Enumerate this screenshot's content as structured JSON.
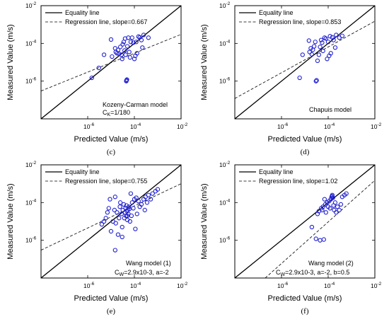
{
  "chart_data": [
    {
      "panel": "(c)",
      "type": "scatter",
      "xlabel": "Predicted Value (m/s)",
      "ylabel": "Measured Value (m/s)",
      "xscale": "log",
      "yscale": "log",
      "xlim": [
        1e-08,
        0.01
      ],
      "ylim": [
        1e-08,
        0.01
      ],
      "tick_labels": [
        "10",
        "-6",
        "10",
        "-4",
        "10",
        "-2"
      ],
      "legend": {
        "position": "top-left",
        "entries": [
          "Equality line",
          "Regression line, slope=0.667"
        ]
      },
      "annotation": {
        "line1": "Kozeny-Carman model",
        "line2_main": "C",
        "line2_sub": "K",
        "line2_rest": "=1/180"
      },
      "regression": {
        "slope": 0.667,
        "start": [
          1e-08,
          3e-07
        ],
        "end": [
          0.01,
          0.0003
        ]
      },
      "points": [
        [
          1.5e-06,
          1.5e-06
        ],
        [
          3e-06,
          5e-06
        ],
        [
          5e-06,
          2.5e-05
        ],
        [
          1e-05,
          0.00016
        ],
        [
          1.1e-05,
          2e-05
        ],
        [
          1.5e-05,
          5.5e-05
        ],
        [
          1.6e-05,
          3.5e-05
        ],
        [
          1.8e-05,
          3e-05
        ],
        [
          2e-05,
          4.5e-05
        ],
        [
          2.2e-05,
          2.8e-05
        ],
        [
          2.5e-05,
          6.5e-05
        ],
        [
          2.8e-05,
          2.5e-05
        ],
        [
          3e-05,
          1.5e-05
        ],
        [
          3.2e-05,
          9e-05
        ],
        [
          3.5e-05,
          0.00012
        ],
        [
          3.8e-05,
          4.2e-05
        ],
        [
          4e-05,
          0.00018
        ],
        [
          4.2e-05,
          2.5e-05
        ],
        [
          4.5e-05,
          1e-06
        ],
        [
          4.6e-05,
          1.1e-06
        ],
        [
          4.8e-05,
          1.2e-06
        ],
        [
          5e-05,
          7e-05
        ],
        [
          5.5e-05,
          0.0002
        ],
        [
          6e-05,
          3.5e-05
        ],
        [
          6.5e-05,
          1.8e-05
        ],
        [
          7e-05,
          0.00012
        ],
        [
          8e-05,
          0.0002
        ],
        [
          9e-05,
          0.00011
        ],
        [
          0.0001,
          1.5e-05
        ],
        [
          0.00011,
          2.2e-05
        ],
        [
          0.00012,
          0.00012
        ],
        [
          0.00013,
          3e-05
        ],
        [
          0.00015,
          0.00023
        ],
        [
          0.00017,
          0.00021
        ],
        [
          0.0002,
          0.00015
        ],
        [
          0.00022,
          6e-05
        ],
        [
          0.00025,
          0.00028
        ],
        [
          0.0004,
          0.0002
        ]
      ]
    },
    {
      "panel": "(d)",
      "type": "scatter",
      "xlabel": "Predicted Value (m/s)",
      "ylabel": "Measured Value (m/s)",
      "xscale": "log",
      "yscale": "log",
      "xlim": [
        1e-08,
        0.01
      ],
      "ylim": [
        1e-08,
        0.01
      ],
      "tick_labels": [
        "10",
        "-6",
        "10",
        "-4",
        "10",
        "-2"
      ],
      "legend": {
        "position": "top-left",
        "entries": [
          "Equality line",
          "Regression line, slope=0.853"
        ]
      },
      "annotation": {
        "line1": "Chapuis model",
        "line2_main": "",
        "line2_sub": "",
        "line2_rest": ""
      },
      "regression": {
        "slope": 0.853,
        "start": [
          1e-08,
          1.2e-07
        ],
        "end": [
          0.01,
          0.0015
        ]
      },
      "points": [
        [
          6e-06,
          1.5e-06
        ],
        [
          8e-06,
          2.5e-05
        ],
        [
          1.5e-05,
          0.00014
        ],
        [
          1.6e-05,
          3.5e-05
        ],
        [
          1.8e-05,
          5.5e-05
        ],
        [
          2e-05,
          2.6e-05
        ],
        [
          2.2e-05,
          4.6e-05
        ],
        [
          2.5e-05,
          7e-05
        ],
        [
          2.8e-05,
          0.00012
        ],
        [
          3e-05,
          1e-06
        ],
        [
          3.2e-05,
          1.1e-06
        ],
        [
          3.5e-05,
          1.2e-05
        ],
        [
          4e-05,
          2.5e-05
        ],
        [
          4.5e-05,
          6.5e-05
        ],
        [
          5e-05,
          0.00015
        ],
        [
          5.5e-05,
          0.00011
        ],
        [
          6e-05,
          4e-05
        ],
        [
          7e-05,
          0.0002
        ],
        [
          8e-05,
          0.00018
        ],
        [
          9e-05,
          1.5e-05
        ],
        [
          0.0001,
          0.00012
        ],
        [
          0.00011,
          2.2e-05
        ],
        [
          0.00012,
          0.00024
        ],
        [
          0.00013,
          3e-05
        ],
        [
          0.00015,
          0.00021
        ],
        [
          0.00017,
          0.00015
        ],
        [
          0.0002,
          6e-05
        ],
        [
          0.00022,
          0.00028
        ],
        [
          0.0003,
          0.0002
        ],
        [
          0.0004,
          0.00025
        ]
      ]
    },
    {
      "panel": "(e)",
      "type": "scatter",
      "xlabel": "Predicted Value (m/s)",
      "ylabel": "Measured Value (m/s)",
      "xscale": "log",
      "yscale": "log",
      "xlim": [
        1e-08,
        0.01
      ],
      "ylim": [
        1e-08,
        0.01
      ],
      "tick_labels": [
        "10",
        "-6",
        "10",
        "-4",
        "10",
        "-2"
      ],
      "legend": {
        "position": "top-left",
        "entries": [
          "Equality line",
          "Regression line, slope=0.755"
        ]
      },
      "annotation": {
        "line1": "Wang model (1)",
        "line2_main": "C",
        "line2_sub": "W",
        "line2_rest": "=2.9x10-3, a=-2"
      },
      "regression": {
        "slope": 0.755,
        "start": [
          1e-08,
          3e-07
        ],
        "end": [
          0.01,
          0.001
        ]
      },
      "points": [
        [
          4e-06,
          7e-06
        ],
        [
          5e-06,
          1e-05
        ],
        [
          6e-06,
          1.5e-05
        ],
        [
          7e-06,
          3e-05
        ],
        [
          8e-06,
          5e-05
        ],
        [
          9e-06,
          0.00015
        ],
        [
          1e-05,
          3e-06
        ],
        [
          1.2e-05,
          1e-05
        ],
        [
          1.4e-05,
          4e-05
        ],
        [
          1.5e-05,
          0.0002
        ],
        [
          1.6e-05,
          8e-06
        ],
        [
          1.8e-05,
          3e-05
        ],
        [
          2e-05,
          2e-06
        ],
        [
          2.2e-05,
          1.5e-05
        ],
        [
          2.4e-05,
          6e-05
        ],
        [
          2.5e-05,
          0.0001
        ],
        [
          2.8e-05,
          2.5e-05
        ],
        [
          3e-05,
          5e-06
        ],
        [
          3.2e-05,
          4e-05
        ],
        [
          3.5e-05,
          8e-05
        ],
        [
          3.7e-05,
          1.5e-05
        ],
        [
          4e-05,
          3e-05
        ],
        [
          4.2e-05,
          5e-05
        ],
        [
          4.4e-05,
          2e-05
        ],
        [
          4.6e-05,
          7e-05
        ],
        [
          4.8e-05,
          3.5e-05
        ],
        [
          5e-05,
          1.2e-05
        ],
        [
          5.2e-05,
          4e-05
        ],
        [
          5.5e-05,
          2.5e-05
        ],
        [
          5.8e-05,
          6e-05
        ],
        [
          6e-05,
          4.5e-05
        ],
        [
          6.5e-05,
          1e-05
        ],
        [
          7e-05,
          0.0003
        ],
        [
          7.5e-05,
          2e-05
        ],
        [
          8e-05,
          0.0001
        ],
        [
          9e-05,
          5e-05
        ],
        [
          0.0001,
          0.00015
        ],
        [
          0.00011,
          4e-06
        ],
        [
          0.00012,
          0.00018
        ],
        [
          0.00013,
          2.5e-05
        ],
        [
          0.00015,
          0.00012
        ],
        [
          0.00017,
          6e-05
        ],
        [
          0.0002,
          8e-05
        ],
        [
          0.00025,
          0.00015
        ],
        [
          0.00028,
          4e-05
        ],
        [
          0.0003,
          0.0002
        ],
        [
          0.00035,
          0.0001
        ],
        [
          0.0004,
          0.00025
        ],
        [
          0.0005,
          0.00015
        ],
        [
          0.0006,
          0.0003
        ],
        [
          0.0008,
          0.0004
        ],
        [
          0.001,
          0.0005
        ],
        [
          1.5e-05,
          3e-07
        ],
        [
          3e-05,
          1.5e-06
        ],
        [
          5e-05,
          2e-05
        ]
      ]
    },
    {
      "panel": "(f)",
      "type": "scatter",
      "xlabel": "Predicted Value (m/s)",
      "ylabel": "Measured Value (m/s)",
      "xscale": "log",
      "yscale": "log",
      "xlim": [
        1e-08,
        0.01
      ],
      "ylim": [
        1e-08,
        0.01
      ],
      "tick_labels": [
        "10",
        "-6",
        "10",
        "-4",
        "10",
        "-2"
      ],
      "legend": {
        "position": "top-left",
        "entries": [
          "Equality line",
          "Regression line, slope=1.02"
        ]
      },
      "annotation": {
        "line1": "Wang model (2)",
        "line2_main": "C",
        "line2_sub": "W",
        "line2_rest": "=2.9x10-3, a=-2, b=0.5"
      },
      "regression": {
        "slope": 1.02,
        "start": [
          2e-07,
          1e-08
        ],
        "end": [
          0.01,
          0.0015
        ]
      },
      "points": [
        [
          2e-05,
          5e-06
        ],
        [
          3e-05,
          1.2e-06
        ],
        [
          3.5e-05,
          2.5e-05
        ],
        [
          4e-05,
          3.5e-05
        ],
        [
          4.5e-05,
          1e-06
        ],
        [
          5e-05,
          5e-05
        ],
        [
          5.5e-05,
          4e-05
        ],
        [
          6e-05,
          6e-05
        ],
        [
          6.5e-05,
          1.1e-06
        ],
        [
          7e-05,
          0.00015
        ],
        [
          7.5e-05,
          8e-05
        ],
        [
          8e-05,
          3e-05
        ],
        [
          9e-05,
          0.0001
        ],
        [
          0.0001,
          6e-05
        ],
        [
          0.00011,
          0.00012
        ],
        [
          0.00012,
          5e-05
        ],
        [
          0.00013,
          0.00015
        ],
        [
          0.00014,
          0.0002
        ],
        [
          0.00015,
          0.00025
        ],
        [
          0.00015,
          0.00022
        ],
        [
          0.00016,
          0.00018
        ],
        [
          0.00017,
          7e-05
        ],
        [
          0.00018,
          4e-05
        ],
        [
          0.0002,
          0.0001
        ],
        [
          0.00022,
          3e-05
        ],
        [
          0.00025,
          6e-05
        ],
        [
          0.0003,
          4e-05
        ],
        [
          0.00035,
          8e-05
        ],
        [
          0.0004,
          0.0002
        ],
        [
          0.0005,
          0.00025
        ],
        [
          0.0006,
          0.0003
        ]
      ]
    }
  ],
  "colors": {
    "marker": "#1f1fd0",
    "line": "#000000"
  }
}
